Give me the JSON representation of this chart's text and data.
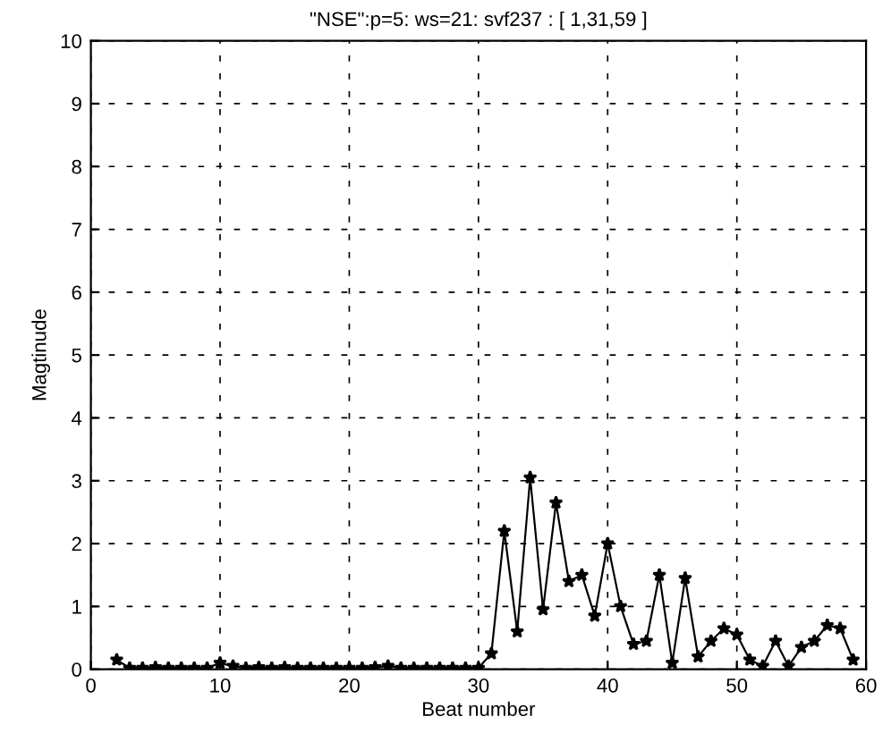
{
  "chart_data": {
    "type": "line",
    "title": "\"NSE\":p=5: ws=21: svf237 : [ 1,31,59 ]",
    "xlabel": "Beat number",
    "ylabel": "Magtinude",
    "x": [
      2,
      3,
      4,
      5,
      6,
      7,
      8,
      9,
      10,
      11,
      12,
      13,
      14,
      15,
      16,
      17,
      18,
      19,
      20,
      21,
      22,
      23,
      24,
      25,
      26,
      27,
      28,
      29,
      30,
      31,
      32,
      33,
      34,
      35,
      36,
      37,
      38,
      39,
      40,
      41,
      42,
      43,
      44,
      45,
      46,
      47,
      48,
      49,
      50,
      51,
      52,
      53,
      54,
      55,
      56,
      57,
      58,
      59
    ],
    "series": [
      {
        "color": "#000000",
        "values": [
          0.15,
          0.02,
          0.02,
          0.03,
          0.02,
          0.02,
          0.02,
          0.02,
          0.1,
          0.05,
          0.02,
          0.03,
          0.02,
          0.03,
          0.02,
          0.02,
          0.02,
          0.02,
          0.02,
          0.02,
          0.03,
          0.05,
          0.02,
          0.02,
          0.02,
          0.02,
          0.02,
          0.02,
          0.02,
          0.25,
          2.2,
          0.6,
          3.05,
          0.95,
          2.65,
          1.4,
          1.5,
          0.85,
          2.0,
          1.0,
          0.4,
          0.45,
          1.5,
          0.1,
          1.45,
          0.2,
          0.45,
          0.65,
          0.55,
          0.15,
          0.05,
          0.45,
          0.05,
          0.35,
          0.45,
          0.7,
          0.65,
          0.15
        ]
      }
    ],
    "marker": "star",
    "xlim": [
      0,
      60
    ],
    "ylim": [
      0,
      10
    ],
    "xticks": [
      0,
      10,
      20,
      30,
      40,
      50,
      60
    ],
    "yticks": [
      0,
      1,
      2,
      3,
      4,
      5,
      6,
      7,
      8,
      9,
      10
    ],
    "grid": true
  }
}
